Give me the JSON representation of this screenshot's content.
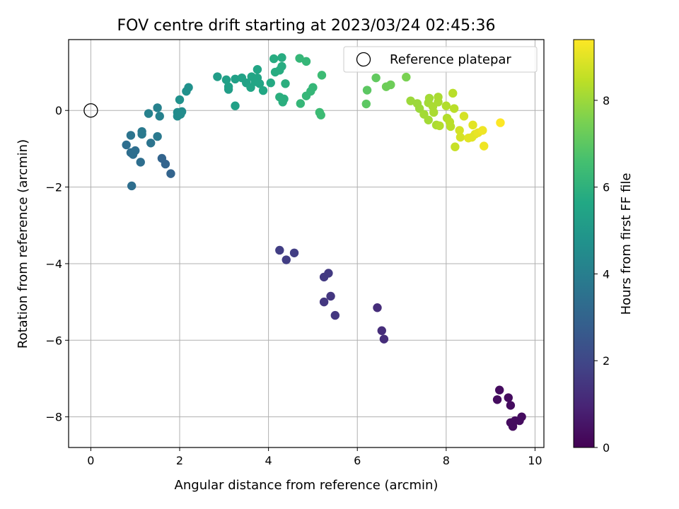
{
  "chart_data": {
    "type": "scatter",
    "title": "FOV centre drift starting at 2023/03/24 02:45:36",
    "xlabel": "Angular distance from reference (arcmin)",
    "ylabel": "Rotation from reference (arcmin)",
    "xlim": [
      -0.5,
      10.2
    ],
    "ylim": [
      -8.8,
      1.85
    ],
    "xticks": [
      0,
      2,
      4,
      6,
      8,
      10
    ],
    "yticks": [
      -8,
      -6,
      -4,
      -2,
      0
    ],
    "grid": true,
    "legend": {
      "position": "top-right",
      "entries": [
        "Reference platepar"
      ]
    },
    "reference_point": {
      "x": 0,
      "y": 0
    },
    "colorbar": {
      "label": "Hours from first FF file",
      "min": 0,
      "max": 9.4,
      "ticks": [
        0,
        2,
        4,
        6,
        8
      ],
      "colormap": "viridis"
    },
    "points": [
      {
        "x": 9.2,
        "y": -7.3,
        "h": 0.3
      },
      {
        "x": 9.15,
        "y": -7.55,
        "h": 0.3
      },
      {
        "x": 9.4,
        "y": -7.5,
        "h": 0.3
      },
      {
        "x": 9.45,
        "y": -7.7,
        "h": 0.3
      },
      {
        "x": 9.45,
        "y": -8.15,
        "h": 0.3
      },
      {
        "x": 9.5,
        "y": -8.25,
        "h": 0.3
      },
      {
        "x": 9.55,
        "y": -8.1,
        "h": 0.3
      },
      {
        "x": 9.65,
        "y": -8.1,
        "h": 0.3
      },
      {
        "x": 9.7,
        "y": -8.0,
        "h": 0.3
      },
      {
        "x": 6.45,
        "y": -5.15,
        "h": 1.2
      },
      {
        "x": 6.55,
        "y": -5.75,
        "h": 1.2
      },
      {
        "x": 6.6,
        "y": -5.97,
        "h": 1.2
      },
      {
        "x": 5.25,
        "y": -5.0,
        "h": 1.5
      },
      {
        "x": 5.4,
        "y": -4.85,
        "h": 1.5
      },
      {
        "x": 5.5,
        "y": -5.35,
        "h": 1.5
      },
      {
        "x": 5.25,
        "y": -4.35,
        "h": 1.6
      },
      {
        "x": 5.35,
        "y": -4.25,
        "h": 1.6
      },
      {
        "x": 4.25,
        "y": -3.65,
        "h": 1.7
      },
      {
        "x": 4.4,
        "y": -3.9,
        "h": 1.7
      },
      {
        "x": 4.58,
        "y": -3.72,
        "h": 1.7
      },
      {
        "x": 1.6,
        "y": -1.25,
        "h": 3.0
      },
      {
        "x": 1.68,
        "y": -1.4,
        "h": 3.0
      },
      {
        "x": 1.8,
        "y": -1.65,
        "h": 3.0
      },
      {
        "x": 0.92,
        "y": -1.97,
        "h": 3.4
      },
      {
        "x": 0.8,
        "y": -0.9,
        "h": 3.4
      },
      {
        "x": 0.9,
        "y": -1.1,
        "h": 3.4
      },
      {
        "x": 1.0,
        "y": -1.05,
        "h": 3.4
      },
      {
        "x": 0.95,
        "y": -1.15,
        "h": 3.4
      },
      {
        "x": 1.12,
        "y": -1.35,
        "h": 3.4
      },
      {
        "x": 0.9,
        "y": -0.65,
        "h": 3.6
      },
      {
        "x": 1.35,
        "y": -0.85,
        "h": 3.6
      },
      {
        "x": 1.15,
        "y": -0.55,
        "h": 3.8
      },
      {
        "x": 1.15,
        "y": -0.62,
        "h": 3.8
      },
      {
        "x": 1.5,
        "y": -0.68,
        "h": 3.8
      },
      {
        "x": 1.3,
        "y": -0.08,
        "h": 4.1
      },
      {
        "x": 1.5,
        "y": 0.07,
        "h": 4.1
      },
      {
        "x": 1.55,
        "y": -0.15,
        "h": 4.1
      },
      {
        "x": 1.95,
        "y": -0.05,
        "h": 4.5
      },
      {
        "x": 2.05,
        "y": -0.03,
        "h": 4.5
      },
      {
        "x": 1.95,
        "y": -0.15,
        "h": 4.5
      },
      {
        "x": 2.02,
        "y": -0.1,
        "h": 4.5
      },
      {
        "x": 2.0,
        "y": 0.28,
        "h": 4.7
      },
      {
        "x": 2.15,
        "y": 0.5,
        "h": 4.7
      },
      {
        "x": 2.2,
        "y": 0.6,
        "h": 4.7
      },
      {
        "x": 2.85,
        "y": 0.88,
        "h": 5.2
      },
      {
        "x": 3.1,
        "y": 0.55,
        "h": 5.2
      },
      {
        "x": 3.05,
        "y": 0.8,
        "h": 5.3
      },
      {
        "x": 3.25,
        "y": 0.82,
        "h": 5.3
      },
      {
        "x": 3.1,
        "y": 0.62,
        "h": 5.3
      },
      {
        "x": 3.25,
        "y": 0.12,
        "h": 5.3
      },
      {
        "x": 3.4,
        "y": 0.85,
        "h": 5.4
      },
      {
        "x": 3.5,
        "y": 0.72,
        "h": 5.4
      },
      {
        "x": 3.6,
        "y": 0.6,
        "h": 5.5
      },
      {
        "x": 3.62,
        "y": 0.88,
        "h": 5.5
      },
      {
        "x": 3.7,
        "y": 0.75,
        "h": 5.5
      },
      {
        "x": 3.75,
        "y": 0.85,
        "h": 5.5
      },
      {
        "x": 3.75,
        "y": 1.07,
        "h": 5.5
      },
      {
        "x": 3.8,
        "y": 0.7,
        "h": 5.5
      },
      {
        "x": 3.88,
        "y": 0.52,
        "h": 5.6
      },
      {
        "x": 4.05,
        "y": 0.72,
        "h": 5.7
      },
      {
        "x": 4.12,
        "y": 1.35,
        "h": 5.8
      },
      {
        "x": 4.15,
        "y": 1.0,
        "h": 5.8
      },
      {
        "x": 4.25,
        "y": 1.05,
        "h": 5.8
      },
      {
        "x": 4.3,
        "y": 1.15,
        "h": 5.8
      },
      {
        "x": 4.3,
        "y": 1.38,
        "h": 5.8
      },
      {
        "x": 4.25,
        "y": 0.35,
        "h": 5.9
      },
      {
        "x": 4.35,
        "y": 0.3,
        "h": 5.9
      },
      {
        "x": 4.32,
        "y": 0.22,
        "h": 5.9
      },
      {
        "x": 4.38,
        "y": 0.7,
        "h": 5.9
      },
      {
        "x": 4.7,
        "y": 1.36,
        "h": 6.2
      },
      {
        "x": 4.85,
        "y": 1.28,
        "h": 6.2
      },
      {
        "x": 4.72,
        "y": 0.18,
        "h": 6.2
      },
      {
        "x": 4.85,
        "y": 0.38,
        "h": 6.2
      },
      {
        "x": 4.95,
        "y": 0.5,
        "h": 6.2
      },
      {
        "x": 5.0,
        "y": 0.6,
        "h": 6.2
      },
      {
        "x": 5.15,
        "y": -0.05,
        "h": 6.4
      },
      {
        "x": 5.18,
        "y": -0.12,
        "h": 6.4
      },
      {
        "x": 5.2,
        "y": 0.92,
        "h": 6.4
      },
      {
        "x": 6.2,
        "y": 0.17,
        "h": 7.0
      },
      {
        "x": 6.22,
        "y": 0.53,
        "h": 7.0
      },
      {
        "x": 6.42,
        "y": 0.85,
        "h": 7.1
      },
      {
        "x": 6.65,
        "y": 0.62,
        "h": 7.3
      },
      {
        "x": 6.75,
        "y": 0.67,
        "h": 7.3
      },
      {
        "x": 7.1,
        "y": 0.87,
        "h": 7.5
      },
      {
        "x": 7.2,
        "y": 0.25,
        "h": 8.0
      },
      {
        "x": 7.35,
        "y": 0.18,
        "h": 8.0
      },
      {
        "x": 7.4,
        "y": 0.05,
        "h": 8.0
      },
      {
        "x": 7.5,
        "y": -0.1,
        "h": 8.1
      },
      {
        "x": 7.6,
        "y": -0.25,
        "h": 8.1
      },
      {
        "x": 7.6,
        "y": 0.2,
        "h": 8.1
      },
      {
        "x": 7.62,
        "y": 0.32,
        "h": 8.1
      },
      {
        "x": 7.7,
        "y": 0.1,
        "h": 8.2
      },
      {
        "x": 7.72,
        "y": -0.05,
        "h": 8.2
      },
      {
        "x": 7.78,
        "y": -0.38,
        "h": 8.2
      },
      {
        "x": 7.82,
        "y": 0.35,
        "h": 8.2
      },
      {
        "x": 7.82,
        "y": 0.22,
        "h": 8.2
      },
      {
        "x": 7.85,
        "y": -0.4,
        "h": 8.3
      },
      {
        "x": 8.0,
        "y": 0.12,
        "h": 8.3
      },
      {
        "x": 8.02,
        "y": -0.2,
        "h": 8.3
      },
      {
        "x": 8.08,
        "y": -0.3,
        "h": 8.4
      },
      {
        "x": 8.1,
        "y": -0.42,
        "h": 8.4
      },
      {
        "x": 8.15,
        "y": 0.45,
        "h": 8.4
      },
      {
        "x": 8.18,
        "y": 0.05,
        "h": 8.4
      },
      {
        "x": 8.2,
        "y": -0.95,
        "h": 8.6
      },
      {
        "x": 8.3,
        "y": -0.52,
        "h": 8.8
      },
      {
        "x": 8.32,
        "y": -0.7,
        "h": 8.8
      },
      {
        "x": 8.4,
        "y": -0.15,
        "h": 8.8
      },
      {
        "x": 8.5,
        "y": -0.72,
        "h": 9.0
      },
      {
        "x": 8.58,
        "y": -0.7,
        "h": 9.0
      },
      {
        "x": 8.6,
        "y": -0.38,
        "h": 9.0
      },
      {
        "x": 8.65,
        "y": -0.62,
        "h": 9.0
      },
      {
        "x": 8.72,
        "y": -0.58,
        "h": 9.1
      },
      {
        "x": 8.82,
        "y": -0.52,
        "h": 9.2
      },
      {
        "x": 8.85,
        "y": -0.93,
        "h": 9.2
      },
      {
        "x": 9.22,
        "y": -0.32,
        "h": 9.4
      }
    ]
  }
}
